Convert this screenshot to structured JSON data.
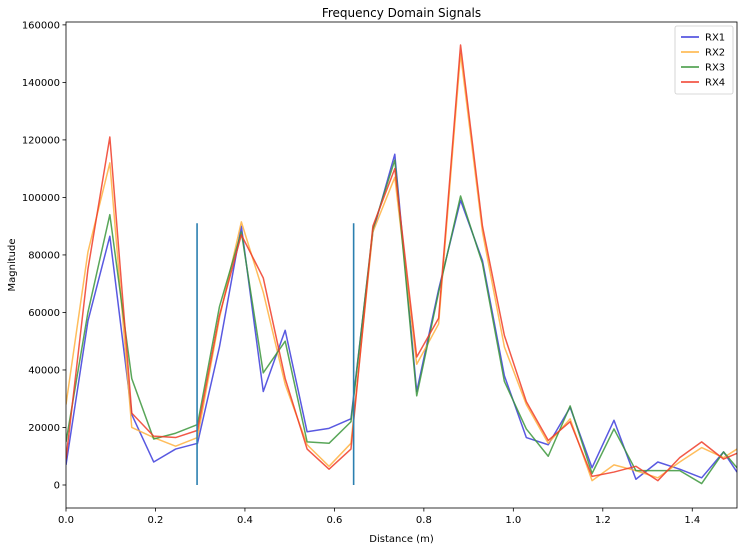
{
  "chart_data": {
    "type": "line",
    "title": "Frequency Domain Signals",
    "xlabel": "Distance (m)",
    "ylabel": "Magnitude",
    "xlim": [
      0,
      1.5
    ],
    "ylim": [
      -8000,
      161000
    ],
    "xticks": [
      0.0,
      0.2,
      0.4,
      0.6,
      0.8,
      1.0,
      1.2,
      1.4
    ],
    "xtick_labels": [
      "0.0",
      "0.2",
      "0.4",
      "0.6",
      "0.8",
      "1.0",
      "1.2",
      "1.4"
    ],
    "yticks": [
      0,
      20000,
      40000,
      60000,
      80000,
      100000,
      120000,
      140000,
      160000
    ],
    "ytick_labels": [
      "0",
      "20000",
      "40000",
      "60000",
      "80000",
      "100000",
      "120000",
      "140000",
      "160000"
    ],
    "grid": false,
    "legend_position": "top-right",
    "x": [
      0.0,
      0.049,
      0.098,
      0.147,
      0.196,
      0.245,
      0.294,
      0.343,
      0.392,
      0.441,
      0.49,
      0.539,
      0.588,
      0.637,
      0.686,
      0.735,
      0.784,
      0.833,
      0.882,
      0.931,
      0.98,
      1.029,
      1.078,
      1.127,
      1.176,
      1.225,
      1.274,
      1.323,
      1.372,
      1.421,
      1.47,
      1.5
    ],
    "series": [
      {
        "name": "RX1",
        "color": "#3c3cdc",
        "values": [
          7000,
          57000,
          86500,
          24500,
          8000,
          12500,
          14500,
          48000,
          90000,
          32500,
          53800,
          18500,
          19700,
          23000,
          88000,
          115000,
          32500,
          68000,
          99000,
          78000,
          38000,
          16500,
          14000,
          27000,
          6000,
          22500,
          2000,
          8000,
          5500,
          2500,
          11500,
          4500
        ]
      },
      {
        "name": "RX2",
        "color": "#ffb23f",
        "values": [
          28000,
          81000,
          112000,
          20000,
          16500,
          13500,
          16500,
          58000,
          91500,
          67000,
          35000,
          14000,
          6500,
          14500,
          88000,
          107000,
          42000,
          56000,
          150000,
          88000,
          48000,
          28000,
          14500,
          23000,
          1500,
          7000,
          5000,
          2500,
          8000,
          13000,
          9500,
          12500
        ]
      },
      {
        "name": "RX3",
        "color": "#3c963c",
        "values": [
          15000,
          60000,
          94000,
          37000,
          16000,
          18000,
          21000,
          62000,
          88000,
          39000,
          50000,
          15000,
          14500,
          22000,
          89000,
          113000,
          31000,
          67000,
          100500,
          77000,
          36000,
          19500,
          10000,
          27500,
          4000,
          19500,
          5000,
          5000,
          5000,
          500,
          11500,
          6000
        ]
      },
      {
        "name": "RX4",
        "color": "#f03c28",
        "values": [
          9000,
          75000,
          121000,
          25000,
          17000,
          16500,
          19000,
          59000,
          87000,
          72000,
          37000,
          12500,
          5500,
          12500,
          90000,
          110000,
          44500,
          58000,
          153000,
          90000,
          52000,
          29000,
          15500,
          22000,
          3000,
          4500,
          6500,
          1500,
          9500,
          15000,
          9000,
          11000
        ]
      }
    ],
    "vertical_lines": [
      {
        "x": 0.293,
        "ymin": 0,
        "ymax": 91000,
        "color": "#2b7fb0"
      },
      {
        "x": 0.643,
        "ymin": 0,
        "ymax": 91000,
        "color": "#2b7fb0"
      }
    ]
  }
}
